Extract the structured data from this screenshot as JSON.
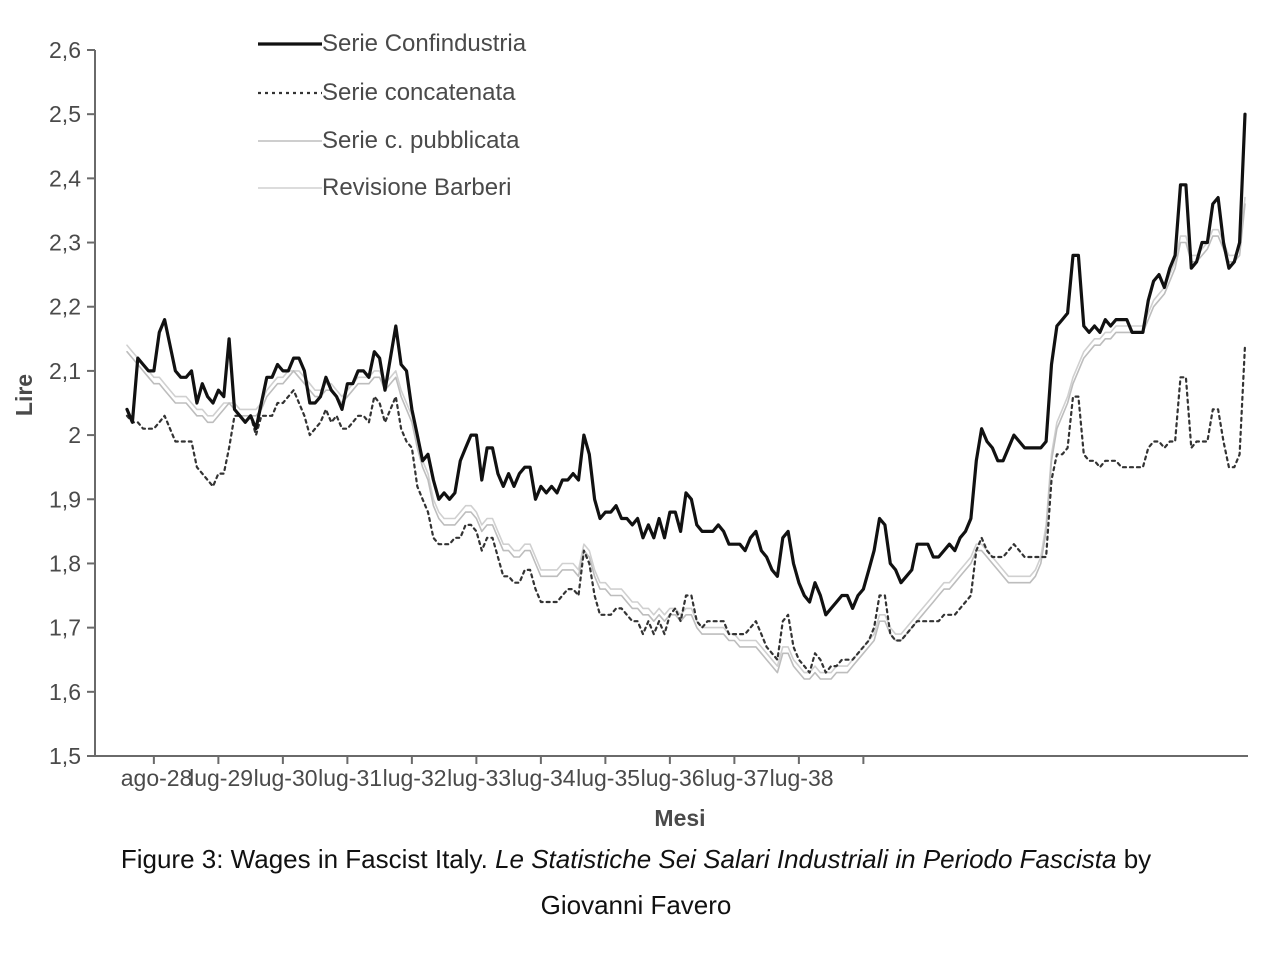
{
  "chart_data": {
    "type": "line",
    "xlabel": "Mesi",
    "ylabel": "Lire",
    "ylim": [
      1.5,
      2.6
    ],
    "y_ticks": [
      "1,5",
      "1,6",
      "1,7",
      "1,8",
      "1,9",
      "2",
      "2,1",
      "2,2",
      "2,3",
      "2,4",
      "2,5",
      "2,6"
    ],
    "x_ticks": [
      "ago-28",
      "lug-29",
      "lug-30",
      "lug-31",
      "lug-32",
      "lug-33",
      "lug-34",
      "lug-35",
      "lug-36",
      "lug-37",
      "lug-38"
    ],
    "x_start": "gen-28",
    "grid": false,
    "legend_position": "top-left",
    "series": [
      {
        "name": "Serie Confindustria",
        "color": "#111111",
        "style": "solid",
        "values": [
          2.04,
          2.02,
          2.12,
          2.11,
          2.1,
          2.1,
          2.16,
          2.18,
          2.14,
          2.1,
          2.09,
          2.09,
          2.1,
          2.05,
          2.08,
          2.06,
          2.05,
          2.07,
          2.06,
          2.15,
          2.04,
          2.03,
          2.02,
          2.03,
          2.01,
          2.05,
          2.09,
          2.09,
          2.11,
          2.1,
          2.1,
          2.12,
          2.12,
          2.1,
          2.05,
          2.05,
          2.06,
          2.09,
          2.07,
          2.06,
          2.04,
          2.08,
          2.08,
          2.1,
          2.1,
          2.09,
          2.13,
          2.12,
          2.07,
          2.12,
          2.17,
          2.11,
          2.1,
          2.04,
          2.0,
          1.96,
          1.97,
          1.93,
          1.9,
          1.91,
          1.9,
          1.91,
          1.96,
          1.98,
          2.0,
          2.0,
          1.93,
          1.98,
          1.98,
          1.94,
          1.92,
          1.94,
          1.92,
          1.94,
          1.95,
          1.95,
          1.9,
          1.92,
          1.91,
          1.92,
          1.91,
          1.93,
          1.93,
          1.94,
          1.93,
          2.0,
          1.97,
          1.9,
          1.87,
          1.88,
          1.88,
          1.89,
          1.87,
          1.87,
          1.86,
          1.87,
          1.84,
          1.86,
          1.84,
          1.87,
          1.84,
          1.88,
          1.88,
          1.85,
          1.91,
          1.9,
          1.86,
          1.85,
          1.85,
          1.85,
          1.86,
          1.85,
          1.83,
          1.83,
          1.83,
          1.82,
          1.84,
          1.85,
          1.82,
          1.81,
          1.79,
          1.78,
          1.84,
          1.85,
          1.8,
          1.77,
          1.75,
          1.74,
          1.77,
          1.75,
          1.72,
          1.73,
          1.74,
          1.75,
          1.75,
          1.73,
          1.75,
          1.76,
          1.79,
          1.82,
          1.87,
          1.86,
          1.8,
          1.79,
          1.77,
          1.78,
          1.79,
          1.83,
          1.83,
          1.83,
          1.81,
          1.81,
          1.82,
          1.83,
          1.82,
          1.84,
          1.85,
          1.87,
          1.96,
          2.01,
          1.99,
          1.98,
          1.96,
          1.96,
          1.98,
          2.0,
          1.99,
          1.98,
          1.98,
          1.98,
          1.98,
          1.99,
          2.11,
          2.17,
          2.18,
          2.19,
          2.28,
          2.28,
          2.17,
          2.16,
          2.17,
          2.16,
          2.18,
          2.17,
          2.18,
          2.18,
          2.18,
          2.16,
          2.16,
          2.16,
          2.21,
          2.24,
          2.25,
          2.23,
          2.26,
          2.28,
          2.39,
          2.39,
          2.26,
          2.27,
          2.3,
          2.3,
          2.36,
          2.37,
          2.3,
          2.26,
          2.27,
          2.3,
          2.5
        ]
      },
      {
        "name": "Serie concatenata",
        "color": "#333333",
        "style": "dotted",
        "values": [
          2.03,
          2.02,
          2.02,
          2.01,
          2.01,
          2.01,
          2.02,
          2.03,
          2.01,
          1.99,
          1.99,
          1.99,
          1.99,
          1.95,
          1.94,
          1.93,
          1.92,
          1.94,
          1.94,
          1.98,
          2.03,
          2.03,
          2.02,
          2.03,
          2.0,
          2.03,
          2.03,
          2.03,
          2.05,
          2.05,
          2.06,
          2.07,
          2.05,
          2.03,
          2.0,
          2.01,
          2.02,
          2.04,
          2.02,
          2.03,
          2.01,
          2.01,
          2.02,
          2.03,
          2.03,
          2.02,
          2.06,
          2.05,
          2.02,
          2.04,
          2.06,
          2.01,
          1.99,
          1.98,
          1.92,
          1.9,
          1.88,
          1.84,
          1.83,
          1.83,
          1.83,
          1.84,
          1.84,
          1.86,
          1.86,
          1.85,
          1.82,
          1.84,
          1.84,
          1.81,
          1.78,
          1.78,
          1.77,
          1.77,
          1.79,
          1.79,
          1.76,
          1.74,
          1.74,
          1.74,
          1.74,
          1.75,
          1.76,
          1.76,
          1.75,
          1.82,
          1.8,
          1.75,
          1.72,
          1.72,
          1.72,
          1.73,
          1.73,
          1.72,
          1.71,
          1.71,
          1.69,
          1.71,
          1.69,
          1.71,
          1.69,
          1.72,
          1.73,
          1.71,
          1.75,
          1.75,
          1.71,
          1.7,
          1.71,
          1.71,
          1.71,
          1.71,
          1.69,
          1.69,
          1.69,
          1.69,
          1.7,
          1.71,
          1.69,
          1.67,
          1.66,
          1.65,
          1.71,
          1.72,
          1.67,
          1.65,
          1.64,
          1.63,
          1.66,
          1.65,
          1.63,
          1.64,
          1.64,
          1.65,
          1.65,
          1.65,
          1.66,
          1.67,
          1.68,
          1.7,
          1.75,
          1.75,
          1.69,
          1.68,
          1.68,
          1.69,
          1.7,
          1.71,
          1.71,
          1.71,
          1.71,
          1.71,
          1.72,
          1.72,
          1.72,
          1.73,
          1.74,
          1.75,
          1.82,
          1.84,
          1.82,
          1.81,
          1.81,
          1.81,
          1.82,
          1.83,
          1.82,
          1.81,
          1.81,
          1.81,
          1.81,
          1.81,
          1.93,
          1.97,
          1.97,
          1.98,
          2.06,
          2.06,
          1.97,
          1.96,
          1.96,
          1.95,
          1.96,
          1.96,
          1.96,
          1.95,
          1.95,
          1.95,
          1.95,
          1.95,
          1.98,
          1.99,
          1.99,
          1.98,
          1.99,
          1.99,
          2.09,
          2.09,
          1.98,
          1.99,
          1.99,
          1.99,
          2.04,
          2.04,
          1.99,
          1.95,
          1.95,
          1.97,
          2.14
        ]
      },
      {
        "name": "Serie c. pubblicata",
        "color": "#bdbdbd",
        "style": "solid",
        "values": [
          2.13,
          2.12,
          2.11,
          2.1,
          2.09,
          2.08,
          2.08,
          2.07,
          2.06,
          2.05,
          2.05,
          2.05,
          2.04,
          2.03,
          2.03,
          2.02,
          2.02,
          2.03,
          2.04,
          2.05,
          2.04,
          2.03,
          2.03,
          2.03,
          2.03,
          2.04,
          2.06,
          2.07,
          2.08,
          2.08,
          2.09,
          2.1,
          2.09,
          2.08,
          2.07,
          2.06,
          2.06,
          2.07,
          2.07,
          2.06,
          2.05,
          2.06,
          2.07,
          2.08,
          2.08,
          2.08,
          2.09,
          2.09,
          2.07,
          2.08,
          2.09,
          2.06,
          2.04,
          2.02,
          1.98,
          1.95,
          1.93,
          1.89,
          1.87,
          1.86,
          1.86,
          1.86,
          1.87,
          1.88,
          1.88,
          1.87,
          1.85,
          1.86,
          1.86,
          1.84,
          1.82,
          1.82,
          1.81,
          1.81,
          1.82,
          1.82,
          1.8,
          1.78,
          1.78,
          1.78,
          1.78,
          1.79,
          1.79,
          1.79,
          1.78,
          1.82,
          1.81,
          1.78,
          1.76,
          1.76,
          1.75,
          1.75,
          1.75,
          1.74,
          1.73,
          1.73,
          1.72,
          1.72,
          1.71,
          1.72,
          1.71,
          1.72,
          1.72,
          1.71,
          1.72,
          1.72,
          1.7,
          1.69,
          1.69,
          1.69,
          1.69,
          1.69,
          1.68,
          1.68,
          1.67,
          1.67,
          1.67,
          1.67,
          1.66,
          1.65,
          1.64,
          1.63,
          1.66,
          1.66,
          1.64,
          1.63,
          1.62,
          1.62,
          1.63,
          1.62,
          1.62,
          1.62,
          1.63,
          1.63,
          1.63,
          1.64,
          1.65,
          1.66,
          1.67,
          1.68,
          1.71,
          1.71,
          1.69,
          1.68,
          1.68,
          1.69,
          1.7,
          1.71,
          1.72,
          1.73,
          1.74,
          1.75,
          1.76,
          1.76,
          1.77,
          1.78,
          1.79,
          1.8,
          1.82,
          1.82,
          1.81,
          1.8,
          1.79,
          1.78,
          1.77,
          1.77,
          1.77,
          1.77,
          1.77,
          1.78,
          1.8,
          1.85,
          1.96,
          2.01,
          2.03,
          2.05,
          2.08,
          2.1,
          2.12,
          2.13,
          2.14,
          2.14,
          2.15,
          2.15,
          2.16,
          2.16,
          2.16,
          2.16,
          2.16,
          2.16,
          2.18,
          2.2,
          2.21,
          2.22,
          2.24,
          2.26,
          2.3,
          2.3,
          2.27,
          2.27,
          2.28,
          2.29,
          2.31,
          2.31,
          2.29,
          2.27,
          2.27,
          2.28,
          2.36
        ]
      },
      {
        "name": "Revisione Barberi",
        "color": "#d0d0d0",
        "style": "solid",
        "values": [
          2.14,
          2.13,
          2.12,
          2.11,
          2.1,
          2.09,
          2.09,
          2.08,
          2.07,
          2.06,
          2.06,
          2.06,
          2.05,
          2.04,
          2.04,
          2.03,
          2.03,
          2.04,
          2.05,
          2.05,
          2.05,
          2.04,
          2.04,
          2.04,
          2.04,
          2.05,
          2.07,
          2.08,
          2.09,
          2.09,
          2.1,
          2.1,
          2.1,
          2.09,
          2.08,
          2.07,
          2.07,
          2.08,
          2.08,
          2.07,
          2.06,
          2.07,
          2.08,
          2.09,
          2.09,
          2.09,
          2.1,
          2.1,
          2.08,
          2.09,
          2.1,
          2.07,
          2.05,
          2.03,
          1.99,
          1.96,
          1.94,
          1.9,
          1.88,
          1.87,
          1.87,
          1.87,
          1.88,
          1.89,
          1.89,
          1.88,
          1.86,
          1.87,
          1.87,
          1.85,
          1.83,
          1.83,
          1.82,
          1.82,
          1.83,
          1.83,
          1.81,
          1.79,
          1.79,
          1.79,
          1.79,
          1.8,
          1.8,
          1.8,
          1.79,
          1.83,
          1.82,
          1.79,
          1.77,
          1.77,
          1.76,
          1.76,
          1.76,
          1.75,
          1.74,
          1.74,
          1.73,
          1.73,
          1.72,
          1.73,
          1.72,
          1.73,
          1.73,
          1.72,
          1.73,
          1.73,
          1.71,
          1.7,
          1.7,
          1.7,
          1.7,
          1.7,
          1.69,
          1.69,
          1.68,
          1.68,
          1.68,
          1.68,
          1.67,
          1.66,
          1.65,
          1.64,
          1.67,
          1.67,
          1.65,
          1.64,
          1.63,
          1.63,
          1.64,
          1.63,
          1.63,
          1.63,
          1.64,
          1.64,
          1.64,
          1.65,
          1.66,
          1.67,
          1.68,
          1.69,
          1.72,
          1.72,
          1.7,
          1.69,
          1.69,
          1.7,
          1.71,
          1.72,
          1.73,
          1.74,
          1.75,
          1.76,
          1.77,
          1.77,
          1.78,
          1.79,
          1.8,
          1.81,
          1.83,
          1.83,
          1.82,
          1.81,
          1.8,
          1.79,
          1.78,
          1.78,
          1.78,
          1.78,
          1.78,
          1.79,
          1.81,
          1.86,
          1.97,
          2.02,
          2.04,
          2.06,
          2.09,
          2.11,
          2.13,
          2.14,
          2.15,
          2.15,
          2.16,
          2.16,
          2.17,
          2.17,
          2.17,
          2.17,
          2.17,
          2.17,
          2.19,
          2.21,
          2.22,
          2.23,
          2.25,
          2.27,
          2.31,
          2.31,
          2.28,
          2.28,
          2.29,
          2.3,
          2.32,
          2.32,
          2.3,
          2.28,
          2.28,
          2.29,
          2.37
        ]
      }
    ]
  },
  "caption": {
    "prefix": "Figure 3: Wages in Fascist Italy. ",
    "italic": "Le Statistiche Sei Salari Industriali in Periodo Fascista",
    "suffix": " by",
    "line2": "Giovanni Favero"
  }
}
